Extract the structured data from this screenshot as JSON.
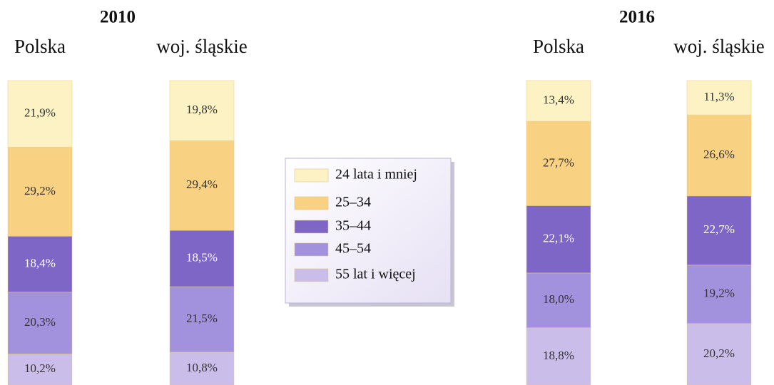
{
  "chart_data": {
    "type": "bar",
    "stacked": true,
    "groups": [
      {
        "title": "2010",
        "categories": [
          "Polska",
          "woj. śląskie"
        ]
      },
      {
        "title": "2016",
        "categories": [
          "Polska",
          "woj. śląskie"
        ]
      }
    ],
    "ylim": [
      0,
      100
    ],
    "series": [
      {
        "name": "24 lata i mniej",
        "color": "#fdf2c4",
        "label_color": "#333333",
        "values": [
          21.9,
          19.8,
          13.4,
          11.3
        ],
        "value_labels": [
          "21,9%",
          "19,8%",
          "13,4%",
          "11,3%"
        ]
      },
      {
        "name": "25–34",
        "color": "#f9d183",
        "label_color": "#333333",
        "values": [
          29.2,
          29.4,
          27.7,
          26.6
        ],
        "value_labels": [
          "29,2%",
          "29,4%",
          "27,7%",
          "26,6%"
        ]
      },
      {
        "name": "35–44",
        "color": "#7e66c6",
        "label_color": "#ffffff",
        "values": [
          18.4,
          18.5,
          22.1,
          22.7
        ],
        "value_labels": [
          "18,4%",
          "18,5%",
          "22,1%",
          "22,7%"
        ]
      },
      {
        "name": "45–54",
        "color": "#a291dc",
        "label_color": "#333333",
        "values": [
          20.3,
          21.5,
          18.0,
          19.2
        ],
        "value_labels": [
          "20,3%",
          "21,5%",
          "18,0%",
          "19,2%"
        ]
      },
      {
        "name": "55 lat i więcej",
        "color": "#cbbde9",
        "label_color": "#333333",
        "values": [
          10.2,
          10.8,
          18.8,
          20.2
        ],
        "value_labels": [
          "10,2%",
          "10,8%",
          "18,8%",
          "20,2%"
        ]
      }
    ]
  }
}
